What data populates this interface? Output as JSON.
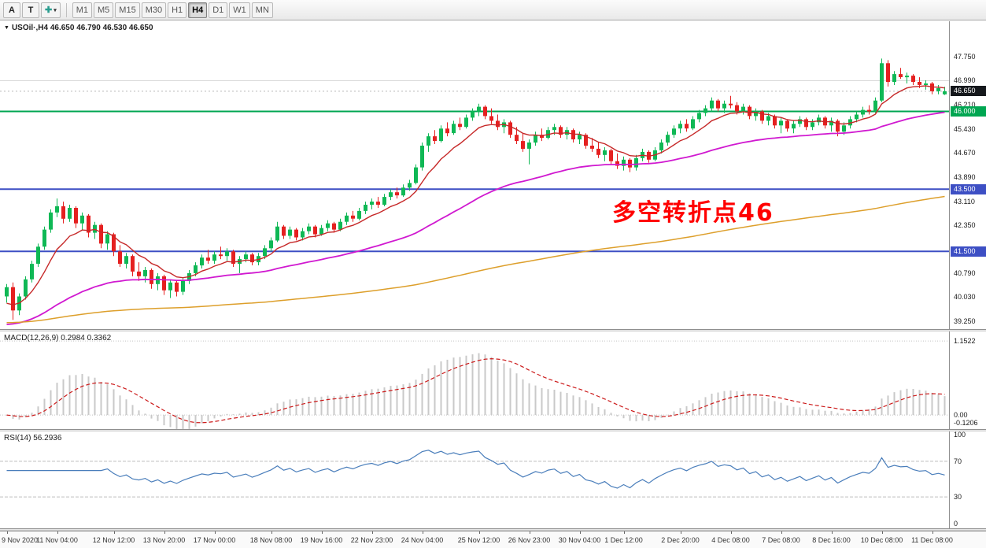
{
  "toolbar": {
    "tools": [
      {
        "name": "arrow-tool",
        "glyph": "A"
      },
      {
        "name": "text-tool",
        "glyph": "T"
      },
      {
        "name": "draw-tool",
        "glyph": "✚",
        "dropdown_glyph": "▾"
      }
    ],
    "periods": [
      "M1",
      "M5",
      "M15",
      "M30",
      "H1",
      "H4",
      "D1",
      "W1",
      "MN"
    ],
    "active_period": "H4"
  },
  "chart": {
    "symbol_line": {
      "collapse_glyph": "▼",
      "title": "USOil·,H4",
      "ohlc": "46.650 46.790 46.530 46.650"
    }
  },
  "chart_data": {
    "type": "candlestick",
    "symbol": "USOil",
    "timeframe": "H4",
    "ohlc_display": {
      "open": "46.650",
      "high": "46.790",
      "low": "46.530",
      "close": "46.650"
    },
    "annotation": {
      "text": "多空转折点46",
      "color": "#ff0000"
    },
    "price_axis_range": [
      39.0,
      48.9
    ],
    "price_axis_labels": [
      "47.750",
      "46.990",
      "46.210",
      "45.430",
      "44.670",
      "43.890",
      "43.110",
      "42.350",
      "40.790",
      "40.030",
      "39.250"
    ],
    "current_price": 46.65,
    "current_price_badge": {
      "text": "46.650",
      "bg": "#15181c"
    },
    "gridline_price": 46.99,
    "colors": {
      "up": "#0fb855",
      "down": "#e52020",
      "bid_line": "#b8b8b8",
      "grid": "#d4d4d4"
    },
    "horizontal_lines": [
      {
        "price": 46.0,
        "color": "#00a651",
        "width": 2,
        "badge": "46.000"
      },
      {
        "price": 43.5,
        "color": "#3d4fc4",
        "width": 2,
        "badge": "43.500"
      },
      {
        "price": 41.5,
        "color": "#3d4fc4",
        "width": 2,
        "badge": "41.500"
      }
    ],
    "moving_averages": [
      {
        "name": "ma-fast-red",
        "period": 9,
        "start": 39.7,
        "color": "#c62828",
        "width": 1.4
      },
      {
        "name": "ma-mid-magenta",
        "period": 50,
        "start": 39.1,
        "color": "#d019d0",
        "width": 1.8
      },
      {
        "name": "ma-slow-orange",
        "period": 220,
        "start": 39.2,
        "color": "#dd9f2b",
        "width": 1.5
      }
    ],
    "indicators": {
      "macd": {
        "label": "MACD(12,26,9) 0.2984 0.3362",
        "fast": 12,
        "slow": 26,
        "signal": 9,
        "axis_labels": [
          "1.1522",
          "0.00",
          "-0.1206"
        ],
        "range": [
          -0.22,
          1.3
        ],
        "histogram_color": "#c9c9c9",
        "signal_color": "#cc1a1a"
      },
      "rsi": {
        "label": "RSI(14) 56.2936",
        "period": 14,
        "axis_labels": [
          "100",
          "70",
          "30",
          "0"
        ],
        "levels": [
          70,
          30
        ],
        "color": "#4a7ebb",
        "range": [
          0,
          100
        ]
      }
    },
    "time_labels": [
      {
        "text": "9 Nov 2020",
        "i": 0
      },
      {
        "text": "11 Nov 04:00",
        "i": 8
      },
      {
        "text": "12 Nov 12:00",
        "i": 17
      },
      {
        "text": "13 Nov 20:00",
        "i": 25
      },
      {
        "text": "17 Nov 00:00",
        "i": 33
      },
      {
        "text": "18 Nov 08:00",
        "i": 42
      },
      {
        "text": "19 Nov 16:00",
        "i": 50
      },
      {
        "text": "22 Nov 23:00",
        "i": 58
      },
      {
        "text": "24 Nov 04:00",
        "i": 66
      },
      {
        "text": "25 Nov 12:00",
        "i": 75
      },
      {
        "text": "26 Nov 23:00",
        "i": 83
      },
      {
        "text": "30 Nov 04:00",
        "i": 91
      },
      {
        "text": "1 Dec 12:00",
        "i": 98
      },
      {
        "text": "2 Dec 20:00",
        "i": 107
      },
      {
        "text": "4 Dec 08:00",
        "i": 115
      },
      {
        "text": "7 Dec 08:00",
        "i": 123
      },
      {
        "text": "8 Dec 16:00",
        "i": 131
      },
      {
        "text": "10 Dec 08:00",
        "i": 139
      },
      {
        "text": "11 Dec 08:00",
        "i": 147
      }
    ],
    "candles": [
      [
        40.05,
        40.45,
        39.85,
        40.35
      ],
      [
        40.35,
        40.5,
        39.3,
        39.6
      ],
      [
        39.6,
        40.15,
        39.45,
        40.05
      ],
      [
        40.05,
        40.7,
        39.95,
        40.6
      ],
      [
        40.6,
        41.2,
        40.5,
        41.1
      ],
      [
        41.1,
        41.75,
        41.0,
        41.65
      ],
      [
        41.65,
        42.3,
        41.55,
        42.2
      ],
      [
        42.2,
        42.85,
        42.1,
        42.75
      ],
      [
        42.75,
        43.2,
        42.6,
        42.95
      ],
      [
        42.95,
        43.1,
        42.4,
        42.55
      ],
      [
        42.55,
        43.0,
        42.45,
        42.9
      ],
      [
        42.9,
        42.95,
        42.25,
        42.4
      ],
      [
        42.4,
        42.75,
        42.2,
        42.65
      ],
      [
        42.65,
        42.7,
        41.95,
        42.1
      ],
      [
        42.1,
        42.45,
        41.9,
        42.35
      ],
      [
        42.35,
        42.4,
        41.6,
        41.75
      ],
      [
        41.75,
        42.15,
        41.55,
        42.05
      ],
      [
        42.05,
        42.1,
        41.35,
        41.5
      ],
      [
        41.5,
        41.7,
        41.0,
        41.1
      ],
      [
        41.1,
        41.45,
        40.95,
        41.35
      ],
      [
        41.35,
        41.4,
        40.7,
        40.85
      ],
      [
        40.85,
        41.15,
        40.55,
        40.7
      ],
      [
        40.7,
        41.0,
        40.5,
        40.9
      ],
      [
        40.9,
        40.95,
        40.3,
        40.45
      ],
      [
        40.45,
        40.8,
        40.25,
        40.7
      ],
      [
        40.7,
        40.75,
        40.1,
        40.25
      ],
      [
        40.25,
        40.6,
        40.0,
        40.5
      ],
      [
        40.5,
        40.55,
        40.05,
        40.2
      ],
      [
        40.2,
        40.65,
        40.1,
        40.55
      ],
      [
        40.55,
        40.9,
        40.45,
        40.8
      ],
      [
        40.8,
        41.15,
        40.7,
        41.05
      ],
      [
        41.05,
        41.4,
        40.95,
        41.3
      ],
      [
        41.3,
        41.55,
        41.1,
        41.2
      ],
      [
        41.2,
        41.5,
        41.1,
        41.4
      ],
      [
        41.4,
        41.65,
        41.25,
        41.35
      ],
      [
        41.35,
        41.6,
        41.2,
        41.5
      ],
      [
        41.5,
        41.55,
        41.0,
        41.1
      ],
      [
        41.1,
        41.35,
        40.8,
        41.25
      ],
      [
        41.25,
        41.5,
        41.15,
        41.4
      ],
      [
        41.4,
        41.45,
        41.05,
        41.15
      ],
      [
        41.15,
        41.45,
        41.05,
        41.35
      ],
      [
        41.35,
        41.7,
        41.25,
        41.6
      ],
      [
        41.6,
        41.95,
        41.5,
        41.85
      ],
      [
        41.85,
        42.45,
        41.8,
        42.3
      ],
      [
        42.3,
        42.35,
        41.9,
        42.0
      ],
      [
        42.0,
        42.3,
        41.9,
        42.2
      ],
      [
        42.2,
        42.25,
        41.85,
        41.95
      ],
      [
        41.95,
        42.25,
        41.85,
        42.15
      ],
      [
        42.15,
        42.4,
        42.05,
        42.3
      ],
      [
        42.3,
        42.35,
        41.95,
        42.05
      ],
      [
        42.05,
        42.35,
        42.0,
        42.25
      ],
      [
        42.25,
        42.5,
        42.15,
        42.4
      ],
      [
        42.4,
        42.45,
        42.1,
        42.2
      ],
      [
        42.2,
        42.55,
        42.15,
        42.45
      ],
      [
        42.45,
        42.75,
        42.35,
        42.65
      ],
      [
        42.65,
        42.8,
        42.45,
        42.55
      ],
      [
        42.55,
        42.9,
        42.5,
        42.8
      ],
      [
        42.8,
        43.1,
        42.7,
        43.0
      ],
      [
        43.0,
        43.2,
        42.85,
        43.1
      ],
      [
        43.1,
        43.25,
        42.9,
        43.0
      ],
      [
        43.0,
        43.35,
        42.95,
        43.25
      ],
      [
        43.25,
        43.5,
        43.15,
        43.4
      ],
      [
        43.4,
        43.55,
        43.2,
        43.3
      ],
      [
        43.3,
        43.65,
        43.25,
        43.55
      ],
      [
        43.55,
        43.8,
        43.45,
        43.7
      ],
      [
        43.7,
        44.3,
        43.65,
        44.2
      ],
      [
        44.2,
        45.0,
        44.1,
        44.9
      ],
      [
        44.9,
        45.3,
        44.7,
        45.2
      ],
      [
        45.2,
        45.4,
        44.95,
        45.05
      ],
      [
        45.05,
        45.55,
        45.0,
        45.45
      ],
      [
        45.45,
        45.65,
        45.2,
        45.3
      ],
      [
        45.3,
        45.7,
        45.25,
        45.6
      ],
      [
        45.6,
        45.8,
        45.4,
        45.5
      ],
      [
        45.5,
        45.9,
        45.45,
        45.8
      ],
      [
        45.8,
        46.1,
        45.7,
        46.0
      ],
      [
        46.0,
        46.25,
        45.85,
        46.15
      ],
      [
        46.15,
        46.2,
        45.75,
        45.85
      ],
      [
        45.85,
        46.1,
        45.6,
        45.7
      ],
      [
        45.7,
        45.9,
        45.4,
        45.5
      ],
      [
        45.5,
        45.75,
        45.3,
        45.65
      ],
      [
        45.65,
        45.7,
        45.15,
        45.25
      ],
      [
        45.25,
        45.5,
        44.95,
        45.05
      ],
      [
        45.05,
        45.3,
        44.7,
        44.8
      ],
      [
        44.8,
        45.1,
        44.3,
        45.0
      ],
      [
        45.0,
        45.35,
        44.9,
        45.25
      ],
      [
        45.25,
        45.45,
        45.05,
        45.15
      ],
      [
        45.15,
        45.5,
        45.1,
        45.4
      ],
      [
        45.4,
        45.6,
        45.25,
        45.5
      ],
      [
        45.5,
        45.55,
        45.15,
        45.25
      ],
      [
        45.25,
        45.5,
        45.1,
        45.4
      ],
      [
        45.4,
        45.45,
        45.0,
        45.1
      ],
      [
        45.1,
        45.35,
        44.95,
        45.25
      ],
      [
        45.25,
        45.3,
        44.8,
        44.9
      ],
      [
        44.9,
        45.15,
        44.7,
        44.8
      ],
      [
        44.8,
        45.0,
        44.5,
        44.6
      ],
      [
        44.6,
        44.85,
        44.4,
        44.75
      ],
      [
        44.75,
        44.8,
        44.3,
        44.4
      ],
      [
        44.4,
        44.65,
        44.15,
        44.25
      ],
      [
        44.25,
        44.55,
        44.1,
        44.45
      ],
      [
        44.45,
        44.5,
        44.05,
        44.2
      ],
      [
        44.2,
        44.6,
        44.1,
        44.5
      ],
      [
        44.5,
        44.8,
        44.4,
        44.7
      ],
      [
        44.7,
        44.75,
        44.35,
        44.45
      ],
      [
        44.45,
        44.85,
        44.4,
        44.75
      ],
      [
        44.75,
        45.1,
        44.65,
        45.0
      ],
      [
        45.0,
        45.35,
        44.9,
        45.25
      ],
      [
        45.25,
        45.55,
        45.15,
        45.45
      ],
      [
        45.45,
        45.7,
        45.3,
        45.6
      ],
      [
        45.6,
        45.75,
        45.35,
        45.45
      ],
      [
        45.45,
        45.85,
        45.4,
        45.75
      ],
      [
        45.75,
        46.05,
        45.65,
        45.95
      ],
      [
        45.95,
        46.2,
        45.85,
        46.1
      ],
      [
        46.1,
        46.45,
        46.0,
        46.35
      ],
      [
        46.35,
        46.4,
        46.0,
        46.1
      ],
      [
        46.1,
        46.35,
        45.95,
        46.25
      ],
      [
        46.25,
        46.5,
        46.1,
        46.2
      ],
      [
        46.2,
        46.3,
        45.9,
        46.0
      ],
      [
        46.0,
        46.25,
        45.9,
        46.15
      ],
      [
        46.15,
        46.2,
        45.75,
        45.85
      ],
      [
        45.85,
        46.1,
        45.7,
        46.0
      ],
      [
        46.0,
        46.05,
        45.6,
        45.7
      ],
      [
        45.7,
        45.95,
        45.55,
        45.85
      ],
      [
        45.85,
        45.9,
        45.45,
        45.55
      ],
      [
        45.55,
        45.8,
        45.3,
        45.7
      ],
      [
        45.7,
        45.75,
        45.35,
        45.45
      ],
      [
        45.45,
        45.7,
        45.3,
        45.6
      ],
      [
        45.6,
        45.85,
        45.5,
        45.75
      ],
      [
        45.75,
        45.8,
        45.4,
        45.5
      ],
      [
        45.5,
        45.75,
        45.4,
        45.65
      ],
      [
        45.65,
        45.9,
        45.55,
        45.8
      ],
      [
        45.8,
        45.85,
        45.45,
        45.55
      ],
      [
        45.55,
        45.8,
        45.35,
        45.7
      ],
      [
        45.7,
        45.75,
        45.2,
        45.35
      ],
      [
        45.35,
        45.65,
        45.25,
        45.55
      ],
      [
        45.55,
        45.85,
        45.45,
        45.75
      ],
      [
        45.75,
        46.0,
        45.65,
        45.9
      ],
      [
        45.9,
        46.15,
        45.8,
        46.05
      ],
      [
        46.05,
        46.2,
        45.9,
        46.0
      ],
      [
        46.0,
        46.45,
        45.95,
        46.35
      ],
      [
        46.35,
        47.7,
        46.3,
        47.55
      ],
      [
        47.55,
        47.65,
        46.8,
        46.95
      ],
      [
        46.95,
        47.3,
        46.85,
        47.2
      ],
      [
        47.2,
        47.4,
        47.05,
        47.1
      ],
      [
        47.1,
        47.25,
        46.9,
        47.15
      ],
      [
        47.15,
        47.2,
        46.85,
        46.95
      ],
      [
        46.95,
        47.1,
        46.75,
        46.85
      ],
      [
        46.85,
        47.0,
        46.7,
        46.9
      ],
      [
        46.9,
        46.95,
        46.55,
        46.65
      ],
      [
        46.65,
        46.85,
        46.55,
        46.75
      ],
      [
        46.55,
        46.79,
        46.53,
        46.65
      ]
    ]
  }
}
